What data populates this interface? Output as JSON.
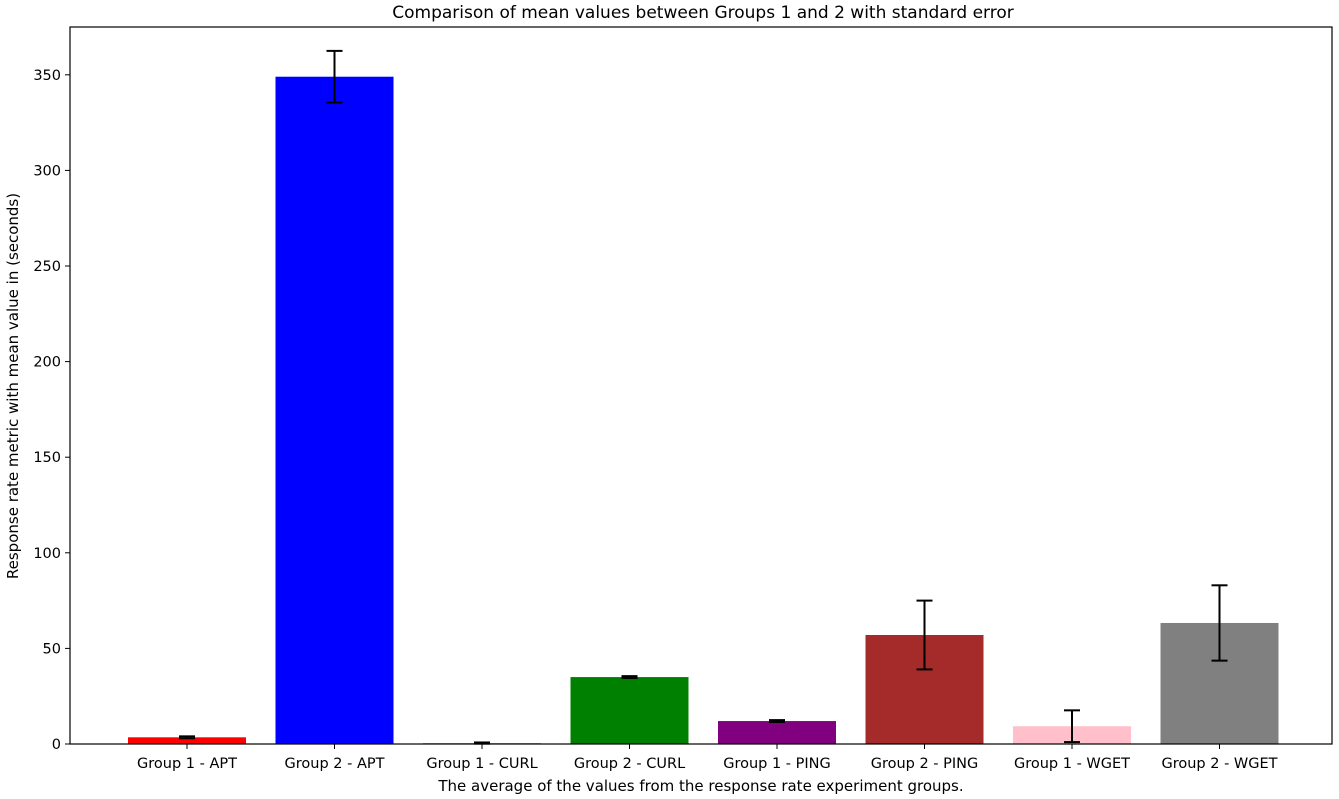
{
  "chart_data": {
    "type": "bar",
    "title": "Comparison of mean values between Groups 1 and 2 with standard error",
    "xlabel": "The average of the values from the response rate experiment groups.",
    "ylabel": "Response rate metric with mean value in (seconds)",
    "ylim": [
      0,
      375
    ],
    "yticks": [
      0,
      50,
      100,
      150,
      200,
      250,
      300,
      350
    ],
    "grid": false,
    "categories": [
      "Group 1 - APT",
      "Group 2 - APT",
      "Group 1 - CURL",
      "Group 2 - CURL",
      "Group 1 - PING",
      "Group 2 - PING",
      "Group 1 - WGET",
      "Group 2 - WGET"
    ],
    "values": [
      3.5,
      349,
      0.5,
      35,
      12,
      57,
      9.3,
      63.3
    ],
    "errors": [
      0.5,
      13.5,
      0.3,
      0.5,
      0.5,
      18,
      8.3,
      19.7
    ],
    "colors": [
      "#ff0000",
      "#0000ff",
      "#ffa500",
      "#008000",
      "#800080",
      "#a52a2a",
      "#ffc0cb",
      "#808080"
    ]
  }
}
